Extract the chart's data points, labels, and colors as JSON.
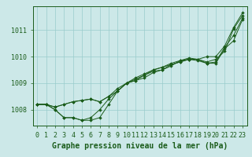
{
  "title": "Graphe pression niveau de la mer (hPa)",
  "xlabel_hours": [
    0,
    1,
    2,
    3,
    4,
    5,
    6,
    7,
    8,
    9,
    10,
    11,
    12,
    13,
    14,
    15,
    16,
    17,
    18,
    19,
    20,
    21,
    22,
    23
  ],
  "ylim": [
    1007.4,
    1011.9
  ],
  "yticks": [
    1008,
    1009,
    1010,
    1011
  ],
  "background_color": "#cce8e8",
  "grid_color": "#99cccc",
  "line_color": "#1a5c1a",
  "marker_color": "#1a5c1a",
  "curves": [
    [
      1008.2,
      1008.2,
      1008.0,
      1007.7,
      1007.7,
      1007.6,
      1007.6,
      1007.7,
      1008.2,
      1008.7,
      1009.0,
      1009.1,
      1009.2,
      1009.4,
      1009.5,
      1009.7,
      1009.8,
      1009.9,
      1009.9,
      1010.0,
      1010.0,
      1010.4,
      1011.1,
      1011.65
    ],
    [
      1008.2,
      1008.2,
      1008.0,
      1007.7,
      1007.7,
      1007.6,
      1007.7,
      1008.0,
      1008.4,
      1008.7,
      1009.0,
      1009.1,
      1009.3,
      1009.5,
      1009.6,
      1009.7,
      1009.8,
      1009.9,
      1009.9,
      1009.75,
      1009.75,
      1010.3,
      1010.6,
      1011.4
    ],
    [
      1008.2,
      1008.2,
      1008.1,
      1008.2,
      1008.3,
      1008.35,
      1008.4,
      1008.3,
      1008.5,
      1008.7,
      1009.0,
      1009.15,
      1009.3,
      1009.45,
      1009.5,
      1009.65,
      1009.85,
      1009.9,
      1009.85,
      1009.75,
      1009.8,
      1010.35,
      1010.8,
      1011.45
    ],
    [
      1008.2,
      1008.2,
      1008.1,
      1008.2,
      1008.3,
      1008.35,
      1008.4,
      1008.3,
      1008.5,
      1008.8,
      1009.0,
      1009.2,
      1009.35,
      1009.5,
      1009.6,
      1009.75,
      1009.85,
      1009.95,
      1009.9,
      1009.8,
      1009.9,
      1010.2,
      1011.05,
      1011.55
    ]
  ],
  "tick_fontsize": 6.0,
  "label_fontsize": 7.0,
  "spine_color": "#1a5c1a"
}
